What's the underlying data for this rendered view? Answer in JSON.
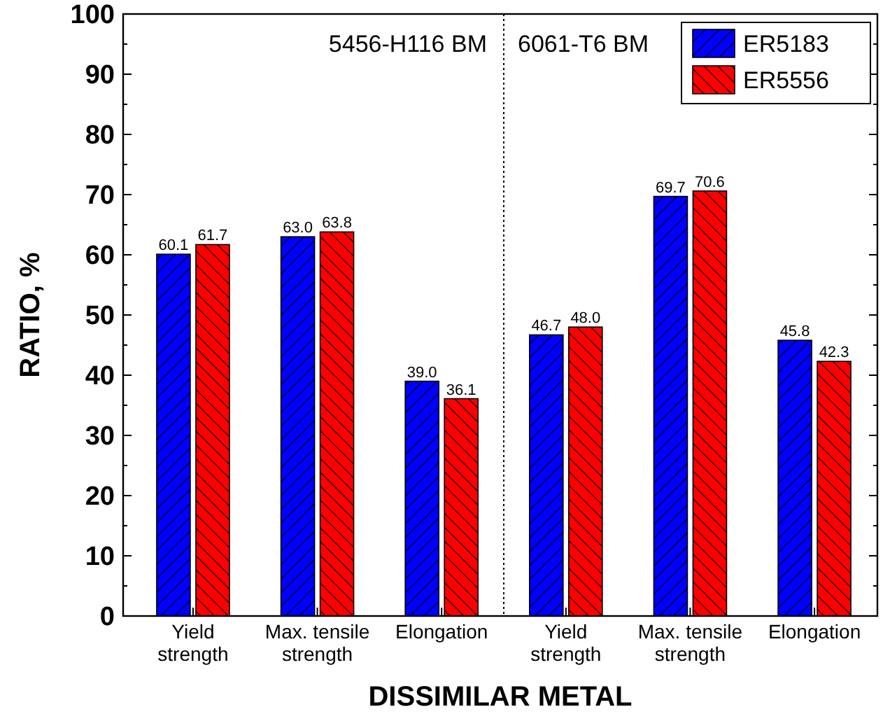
{
  "chart_data": {
    "type": "bar",
    "xlabel": "DISSIMILAR METAL",
    "ylabel": "RATIO, %",
    "categories": [
      "Yield strength",
      "Max. tensile strength",
      "Elongation",
      "Yield strength",
      "Max. tensile strength",
      "Elongation"
    ],
    "series": [
      {
        "name": "ER5183",
        "color": "#0000ff",
        "values": [
          60.1,
          63.0,
          39.0,
          46.7,
          69.7,
          45.8
        ],
        "value_labels": [
          "60.1",
          "63.0",
          "39.0",
          "46.7",
          "69.7",
          "45.8"
        ]
      },
      {
        "name": "ER5556",
        "color": "#ff0000",
        "values": [
          61.7,
          63.8,
          36.1,
          48.0,
          70.6,
          42.3
        ],
        "value_labels": [
          "61.7",
          "63.8",
          "36.1",
          "48.0",
          "70.6",
          "42.3"
        ]
      }
    ],
    "ylim": [
      0,
      100
    ],
    "yticks": [
      0,
      10,
      20,
      30,
      40,
      50,
      60,
      70,
      80,
      90,
      100
    ],
    "legend": "top right",
    "grid": false,
    "annotations": [
      "5456-H116 BM",
      "6061-T6 BM"
    ]
  }
}
